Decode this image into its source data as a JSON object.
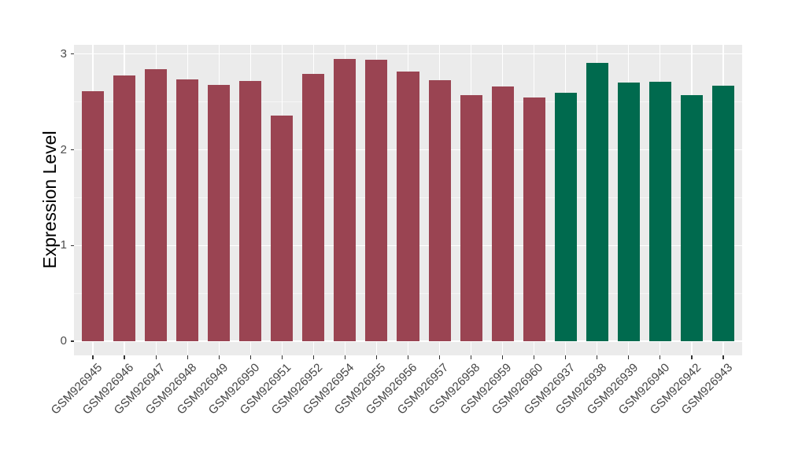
{
  "chart_data": {
    "type": "bar",
    "title": "",
    "xlabel": "",
    "ylabel": "Expression Level",
    "categories": [
      "GSM926945",
      "GSM926946",
      "GSM926947",
      "GSM926948",
      "GSM926949",
      "GSM926950",
      "GSM926951",
      "GSM926952",
      "GSM926954",
      "GSM926955",
      "GSM926956",
      "GSM926957",
      "GSM926958",
      "GSM926959",
      "GSM926960",
      "GSM926937",
      "GSM926938",
      "GSM926939",
      "GSM926940",
      "GSM926942",
      "GSM926943"
    ],
    "values": [
      2.61,
      2.78,
      2.84,
      2.74,
      2.68,
      2.72,
      2.36,
      2.79,
      2.95,
      2.94,
      2.82,
      2.73,
      2.57,
      2.66,
      2.55,
      2.6,
      2.91,
      2.7,
      2.71,
      2.57,
      2.67
    ],
    "bar_color_index": [
      0,
      0,
      0,
      0,
      0,
      0,
      0,
      0,
      0,
      0,
      0,
      0,
      0,
      0,
      0,
      1,
      1,
      1,
      1,
      1,
      1
    ],
    "palette": [
      "#9A4452",
      "#006A4E"
    ],
    "yticks": [
      0,
      1,
      2,
      3
    ],
    "ytick_labels": [
      "0",
      "1",
      "2",
      "3"
    ],
    "minor_yticks": [
      0.5,
      1.5,
      2.5
    ],
    "ylim": [
      0,
      3
    ],
    "x_label_rotation_deg": 45,
    "grid": "on",
    "legend": "none",
    "panel_background": "#EBEBEB",
    "gridline_color": "#FFFFFF",
    "tick_label_color": "#4D4D4D",
    "axis_title_color": "#000000"
  }
}
